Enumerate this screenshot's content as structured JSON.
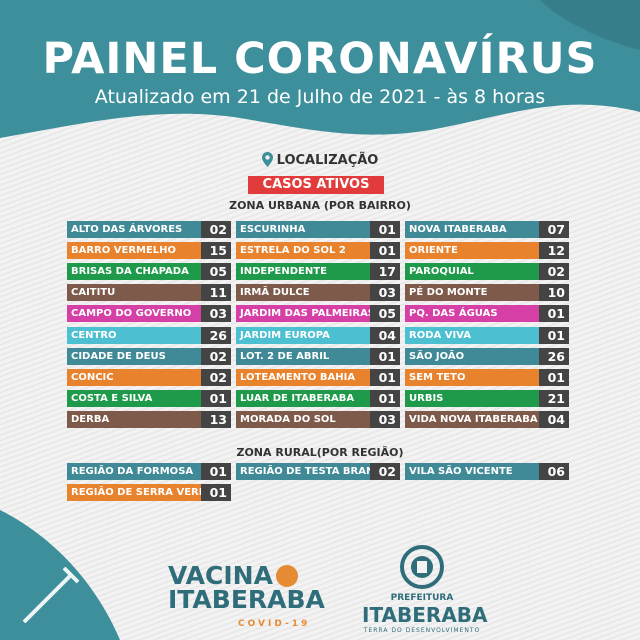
{
  "header": {
    "title": "PAINEL CORONAVÍRUS",
    "subtitle": "Atualizado em 21 de Julho de 2021 - às 8 horas"
  },
  "section": {
    "location_label": "LOCALIZAÇÃO",
    "badge": "CASOS ATIVOS",
    "urban_title": "ZONA URBANA (POR BAIRRO)",
    "rural_title": "ZONA RURAL(POR REGIÃO)"
  },
  "colors": {
    "teal": "#3f8a96",
    "orange": "#e8822c",
    "green": "#1e9a4a",
    "brown": "#7d5a4a",
    "magenta": "#d63fa6",
    "cyan": "#4cbfd1",
    "number_bg": "#444444",
    "header": "#3d8f9b",
    "badge": "#e23b3b"
  },
  "urban": {
    "col1": [
      {
        "name": "ALTO DAS ÁRVORES",
        "cases": "02",
        "color": "#3f8a96"
      },
      {
        "name": "BARRO VERMELHO",
        "cases": "15",
        "color": "#e8822c"
      },
      {
        "name": "BRISAS DA CHAPADA",
        "cases": "05",
        "color": "#1e9a4a"
      },
      {
        "name": "CAITITU",
        "cases": "11",
        "color": "#7d5a4a"
      },
      {
        "name": "CAMPO DO GOVERNO",
        "cases": "03",
        "color": "#d63fa6"
      },
      {
        "name": "CENTRO",
        "cases": "26",
        "color": "#4cbfd1"
      },
      {
        "name": "CIDADE DE DEUS",
        "cases": "02",
        "color": "#3f8a96"
      },
      {
        "name": "CONCIC",
        "cases": "02",
        "color": "#e8822c"
      },
      {
        "name": "COSTA E SILVA",
        "cases": "01",
        "color": "#1e9a4a"
      },
      {
        "name": "DERBA",
        "cases": "13",
        "color": "#7d5a4a"
      }
    ],
    "col2": [
      {
        "name": "ESCURINHA",
        "cases": "01",
        "color": "#3f8a96"
      },
      {
        "name": "ESTRELA DO SOL 2",
        "cases": "01",
        "color": "#e8822c"
      },
      {
        "name": "INDEPENDENTE",
        "cases": "17",
        "color": "#1e9a4a"
      },
      {
        "name": "IRMÃ DULCE",
        "cases": "03",
        "color": "#7d5a4a"
      },
      {
        "name": "JARDIM DAS PALMEIRAS",
        "cases": "05",
        "color": "#d63fa6"
      },
      {
        "name": "JARDIM EUROPA",
        "cases": "04",
        "color": "#4cbfd1"
      },
      {
        "name": "LOT. 2 DE ABRIL",
        "cases": "01",
        "color": "#3f8a96"
      },
      {
        "name": "LOTEAMENTO BAHIA",
        "cases": "01",
        "color": "#e8822c"
      },
      {
        "name": "LUAR DE ITABERABA",
        "cases": "01",
        "color": "#1e9a4a"
      },
      {
        "name": "MORADA DO SOL",
        "cases": "03",
        "color": "#7d5a4a"
      }
    ],
    "col3": [
      {
        "name": "NOVA ITABERABA",
        "cases": "07",
        "color": "#3f8a96"
      },
      {
        "name": "ORIENTE",
        "cases": "12",
        "color": "#e8822c"
      },
      {
        "name": "PAROQUIAL",
        "cases": "02",
        "color": "#1e9a4a"
      },
      {
        "name": "PÉ DO MONTE",
        "cases": "10",
        "color": "#7d5a4a"
      },
      {
        "name": "PQ. DAS ÁGUAS",
        "cases": "01",
        "color": "#d63fa6"
      },
      {
        "name": "RODA VIVA",
        "cases": "01",
        "color": "#4cbfd1"
      },
      {
        "name": "SÃO JOÃO",
        "cases": "26",
        "color": "#3f8a96"
      },
      {
        "name": "SEM TETO",
        "cases": "01",
        "color": "#e8822c"
      },
      {
        "name": "URBIS",
        "cases": "21",
        "color": "#1e9a4a"
      },
      {
        "name": "VIDA NOVA ITABERABA",
        "cases": "04",
        "color": "#7d5a4a"
      }
    ]
  },
  "rural": [
    {
      "name": "REGIÃO DA FORMOSA",
      "cases": "01",
      "color": "#3f8a96"
    },
    {
      "name": "REGIÃO DE TESTA BRANCA",
      "cases": "02",
      "color": "#3f8a96"
    },
    {
      "name": "VILA SÃO VICENTE",
      "cases": "06",
      "color": "#3f8a96"
    },
    {
      "name": "REGIÃO DE SERRA VERDE",
      "cases": "01",
      "color": "#e8822c"
    }
  ],
  "footer": {
    "vacina": "VACINA",
    "city": "ITABERABA",
    "covid": "COVID-19",
    "prefeitura": "PREFEITURA",
    "pref_city": "ITABERABA",
    "slogan": "TERRA DO DESENVOLVIMENTO"
  }
}
